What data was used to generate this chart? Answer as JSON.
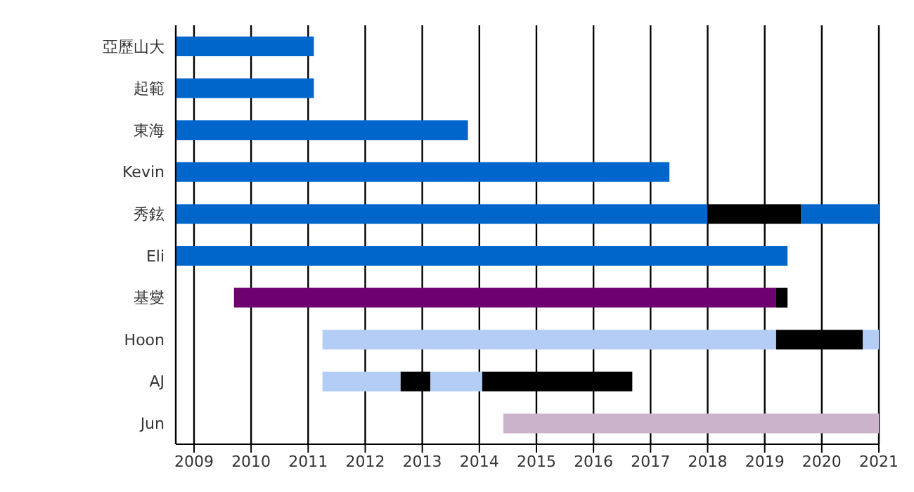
{
  "chart_data": {
    "type": "bar",
    "orientation": "horizontal",
    "categories": [
      "亞歷山大",
      "起範",
      "東海",
      "Kevin",
      "秀鉉",
      "Eli",
      "基燮",
      "Hoon",
      "AJ",
      "Jun"
    ],
    "series": [
      {
        "base": [
          2008.68,
          2008.68,
          2008.68,
          2008.68,
          2008.68,
          2008.68,
          2009.7,
          2011.25,
          2011.25,
          2014.42
        ],
        "values": [
          2.42,
          2.42,
          5.12,
          8.65,
          9.32,
          10.72,
          9.5,
          7.95,
          1.37,
          6.58
        ],
        "colors": [
          "#0066cc",
          "#0066cc",
          "#0066cc",
          "#0066cc",
          "#0066cc",
          "#0066cc",
          "#6e0070",
          "#b3cdf7",
          "#b3cdf7",
          "#cbb3cc"
        ]
      },
      {
        "base": [
          null,
          null,
          null,
          null,
          2018.0,
          null,
          2019.2,
          2019.2,
          2012.62,
          null
        ],
        "values": [
          null,
          null,
          null,
          null,
          1.64,
          null,
          0.2,
          1.52,
          0.52,
          null
        ],
        "color": "#000000"
      },
      {
        "base": [
          null,
          null,
          null,
          null,
          2019.64,
          null,
          null,
          2020.72,
          2013.14,
          null
        ],
        "values": [
          null,
          null,
          null,
          null,
          1.36,
          null,
          null,
          0.28,
          0.91,
          null
        ],
        "colors": [
          "#0066cc",
          "#0066cc",
          "#0066cc",
          "#0066cc",
          "#0066cc",
          "#0066cc",
          "#0066cc",
          "#b3cdf7",
          "#b3cdf7",
          "#0066cc"
        ]
      },
      {
        "base": [
          null,
          null,
          null,
          null,
          null,
          null,
          null,
          null,
          2014.05,
          null
        ],
        "values": [
          null,
          null,
          null,
          null,
          null,
          null,
          null,
          null,
          2.63,
          null
        ],
        "color": "#000000"
      }
    ],
    "xlim": [
      2008.68,
      2021
    ],
    "xticks": [
      2009,
      2010,
      2011,
      2012,
      2013,
      2014,
      2015,
      2016,
      2017,
      2018,
      2019,
      2020,
      2021
    ],
    "grid": "x",
    "legend": false
  }
}
